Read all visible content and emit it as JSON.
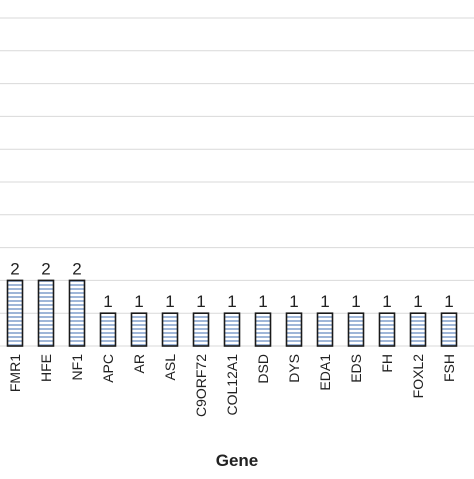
{
  "chart_data": {
    "type": "bar",
    "categories": [
      "FMR1",
      "HFE",
      "NF1",
      "APC",
      "AR",
      "ASL",
      "C9ORF72",
      "COL12A1",
      "DSD",
      "DYS",
      "EDA1",
      "EDS",
      "FH",
      "FOXL2",
      "FSH"
    ],
    "values": [
      2,
      2,
      2,
      1,
      1,
      1,
      1,
      1,
      1,
      1,
      1,
      1,
      1,
      1,
      1
    ],
    "data_labels": [
      "2",
      "2",
      "2",
      "1",
      "1",
      "1",
      "1",
      "1",
      "1",
      "1",
      "1",
      "1",
      "1",
      "1",
      "1"
    ],
    "title": "",
    "xlabel": "Gene",
    "ylabel": "",
    "ylim": [
      0,
      14
    ],
    "grid": true,
    "bar_fill": "striped light blue",
    "colors": {
      "bar_stripe": "#9fb6d8",
      "bar_background": "#ffffff",
      "bar_border": "#1a1a1a",
      "grid": "#d9d9d9",
      "text": "#222222"
    }
  }
}
